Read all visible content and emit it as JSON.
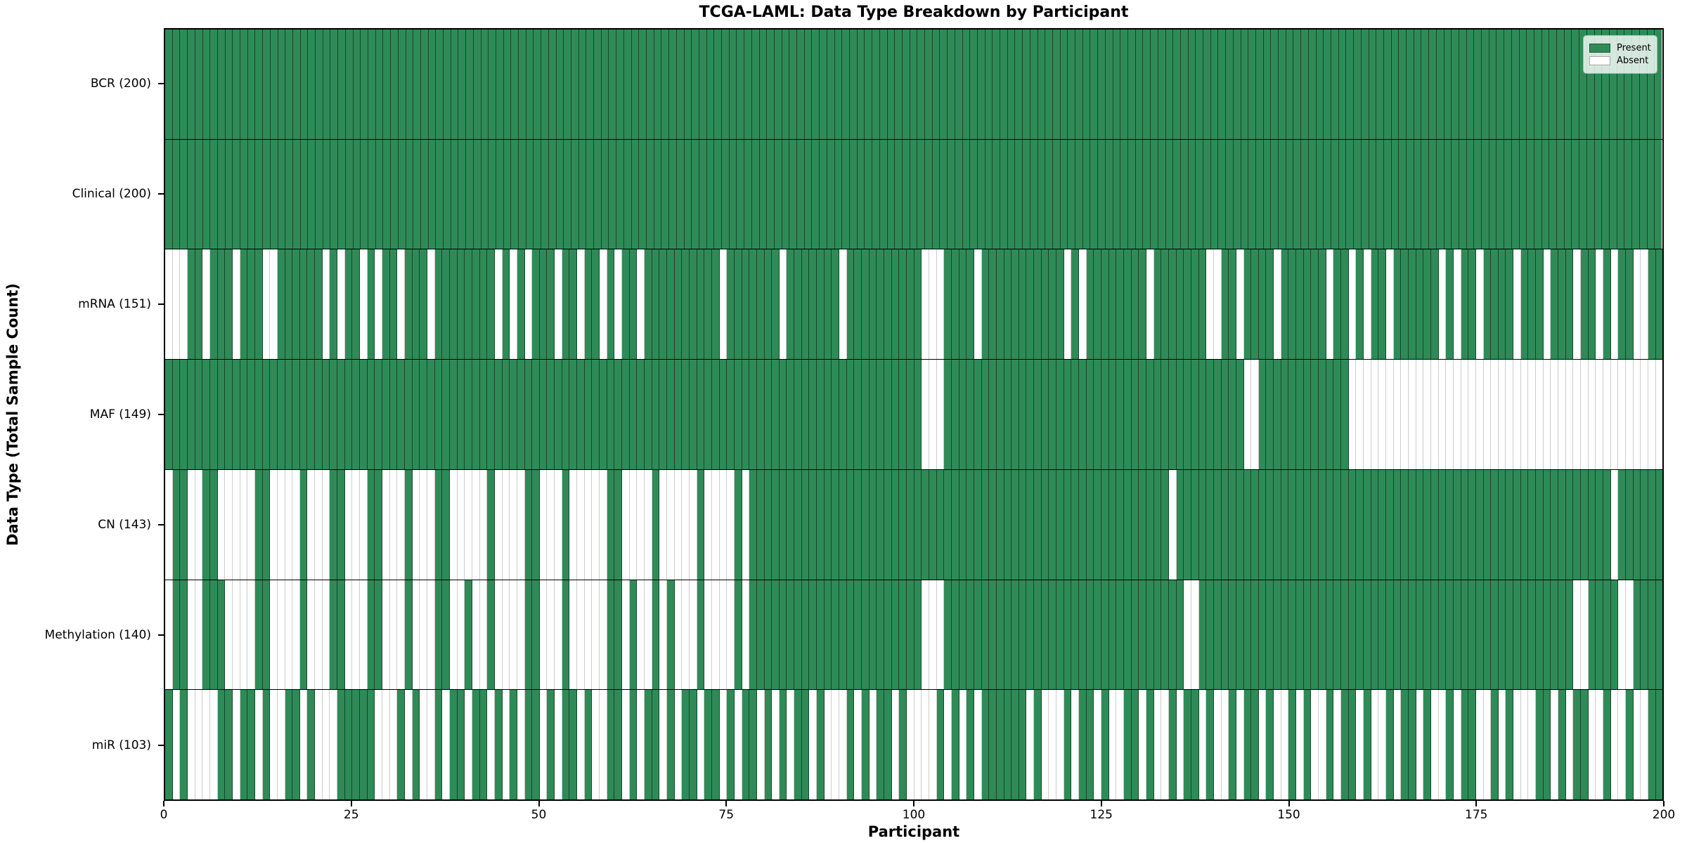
{
  "title": "TCGA-LAML: Data Type Breakdown by Participant",
  "axes": {
    "xlabel": "Participant",
    "ylabel": "Data Type (Total Sample Count)"
  },
  "legend": {
    "entries": [
      {
        "label": "Present",
        "color": "#2e8b57"
      },
      {
        "label": "Absent",
        "color": "#ffffff"
      }
    ]
  },
  "chart_data": {
    "type": "heatmap",
    "title": "TCGA-LAML: Data Type Breakdown by Participant",
    "xlabel": "Participant",
    "ylabel": "Data Type (Total Sample Count)",
    "x_range": [
      0,
      200
    ],
    "x_ticks": [
      0,
      25,
      50,
      75,
      100,
      125,
      150,
      175,
      200
    ],
    "n_participants": 200,
    "grid": false,
    "legend_position": "upper right",
    "colors": {
      "present": "#2e8b57",
      "absent": "#ffffff",
      "cell_border_on_present": "rgba(0,0,0,0.50)",
      "cell_border_on_absent": "rgba(0,0,0,0.20)",
      "row_separator": "#000000"
    },
    "rows": [
      {
        "name": "BCR",
        "label": "BCR (200)",
        "total_sample_count": 200,
        "pattern": "1111111111111111111111111111111111111111111111111111111111111111111111111111111111111111111111111111111111111111111111111111111111111111111111111111111111111111111111111111111111111111111111111111111"
      },
      {
        "name": "Clinical",
        "label": "Clinical (200)",
        "total_sample_count": 200,
        "pattern": "1111111111111111111111111111111111111111111111111111111111111111111111111111111111111111111111111111111111111111111111111111111111111111111111111111111111111111111111111111111111111111111111111111111"
      },
      {
        "name": "mRNA",
        "label": "mRNA (151)",
        "total_sample_count": 151,
        "pattern": "00011011101110011111101011010110111011111111010101110110110101101111111111011111110111111101111111111000111101111111111101011111111011111110011011110111111011010110111111010110111101110111011010110011"
      },
      {
        "name": "MAF",
        "label": "MAF (149)",
        "total_sample_count": 149,
        "pattern": "11111111111111111111111111111111111111111111111111111111111111111111111111111111111111111111111111111000111111111111111111111111111111111111111100111111111111000000000000000000000000000000000000000000"
      },
      {
        "name": "CN",
        "label": "CN (143)",
        "total_sample_count": 143,
        "pattern": "01100110000011000010001100011000100011000001000011000100000110000100000100001011111111111111111111111111111111111111111111111111111111011111111111111111111111111111111111111111111111111111111110111111"
      },
      {
        "name": "Methylation",
        "label": "Methylation (140)",
        "total_sample_count": 140,
        "pattern": "01100111000011000010001100011000100011001001000011000100000110100101000100001011111111111111111111111000111111111111111111111111111111110011111111111111111111111111111111111111111111111111001111001111"
      },
      {
        "name": "miR",
        "label": "miR (103)",
        "total_sample_count": 103,
        "pattern": "10100001101101001101000111110001010010110110101011010110100110101101011011010110101011010001010110100001010101111110100010110100110100101101001011010010100101101001011010010110010100011010110010010011"
      }
    ]
  }
}
